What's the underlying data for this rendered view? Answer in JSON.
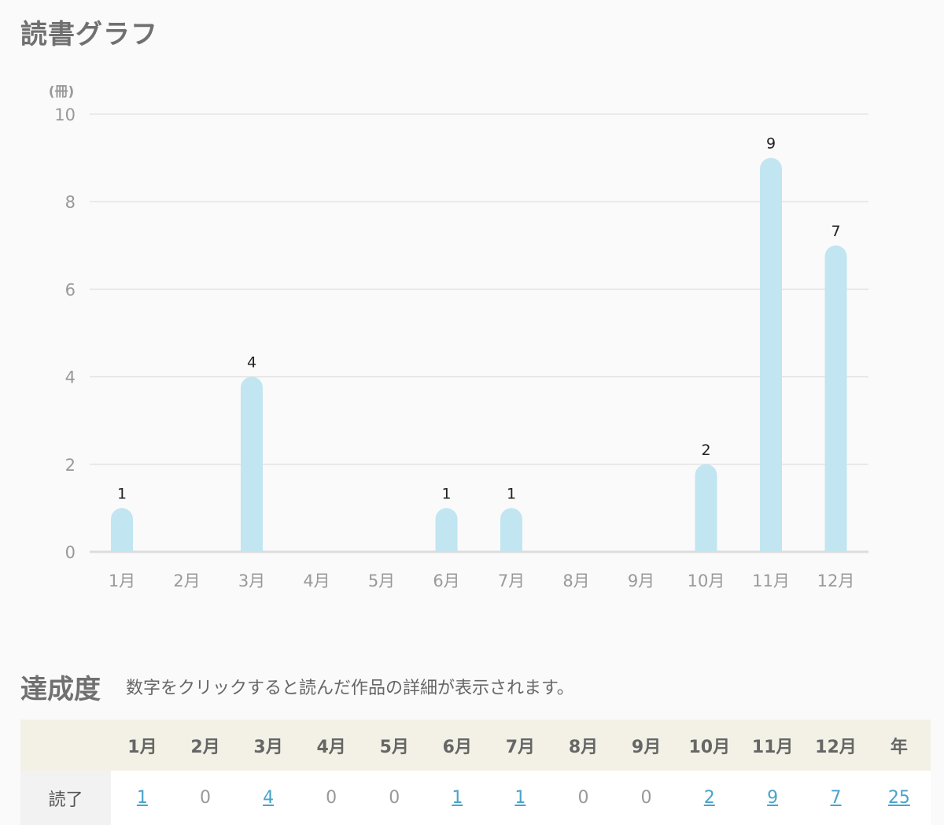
{
  "title": "読書グラフ",
  "chart_data": {
    "type": "bar",
    "ylabel": "(冊)",
    "ylim": [
      0,
      10
    ],
    "yticks": [
      0,
      2,
      4,
      6,
      8,
      10
    ],
    "categories": [
      "1月",
      "2月",
      "3月",
      "4月",
      "5月",
      "6月",
      "7月",
      "8月",
      "9月",
      "10月",
      "11月",
      "12月"
    ],
    "values": [
      1,
      0,
      4,
      0,
      0,
      1,
      1,
      0,
      0,
      2,
      9,
      7
    ],
    "grid": true,
    "bar_color": "#c1e5f1"
  },
  "achievement": {
    "title": "達成度",
    "note": "数字をクリックすると読んだ作品の詳細が表示されます。",
    "headers": [
      "1月",
      "2月",
      "3月",
      "4月",
      "5月",
      "6月",
      "7月",
      "8月",
      "9月",
      "10月",
      "11月",
      "12月",
      "年"
    ],
    "row_label": "読了",
    "values": [
      "1",
      "0",
      "4",
      "0",
      "0",
      "1",
      "1",
      "0",
      "0",
      "2",
      "9",
      "7",
      "25"
    ]
  }
}
